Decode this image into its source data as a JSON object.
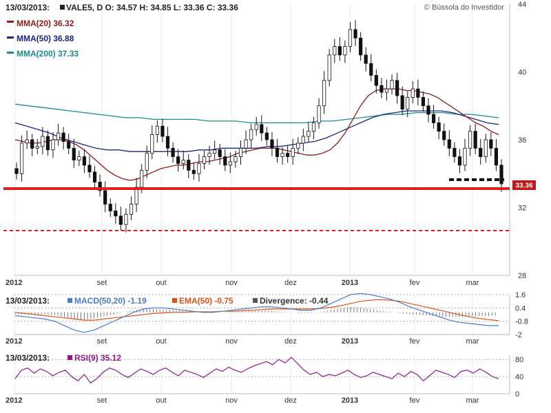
{
  "header": {
    "date": "13/03/2013:",
    "ohlc": "VALE5, D  O: 34.57  H: 34.85  L: 33.36  C: 33.36",
    "credit": "© Bússola do Investidor",
    "legend": [
      {
        "label": "MMA(20) 36.32",
        "color": "#8b1a1a"
      },
      {
        "label": "MMA(50) 36.88",
        "color": "#1a237e"
      },
      {
        "label": "MMA(200) 37.33",
        "color": "#1b8a8a"
      }
    ],
    "price_badge": "33.36"
  },
  "macd_header": {
    "date": "13/03/2013:",
    "macd": "MACD(50,20) -1.19",
    "ema": "EMA(50) -0.75",
    "divergence": "Divergence: -0.44"
  },
  "rsi_header": {
    "date": "13/03/2013:",
    "rsi": "RSI(9) 35.12"
  },
  "x_ticks": [
    {
      "label": "2012",
      "bold": true
    },
    {
      "label": "set",
      "bold": false
    },
    {
      "label": "out",
      "bold": false
    },
    {
      "label": "nov",
      "bold": false
    },
    {
      "label": "dez",
      "bold": false
    },
    {
      "label": "2013",
      "bold": true
    },
    {
      "label": "fev",
      "bold": false
    },
    {
      "label": "mar",
      "bold": false
    }
  ],
  "chart_data": [
    {
      "type": "candlestick",
      "ylim": [
        28,
        44
      ],
      "yticks": [
        "44",
        "40",
        "36",
        "32",
        "28"
      ],
      "support_line": 33.1,
      "dashed_support": 30.8,
      "closes": [
        34.0,
        35.8,
        36.0,
        35.5,
        35.6,
        36.2,
        35.4,
        36.0,
        36.4,
        35.9,
        35.5,
        34.8,
        35.0,
        34.5,
        34.1,
        33.5,
        33.0,
        32.2,
        31.8,
        31.5,
        31.0,
        31.6,
        32.2,
        33.2,
        34.2,
        35.2,
        36.3,
        36.8,
        36.2,
        35.5,
        35.0,
        34.6,
        34.8,
        34.2,
        34.0,
        34.6,
        35.0,
        35.2,
        35.4,
        35.0,
        34.5,
        34.7,
        35.0,
        35.5,
        36.0,
        36.6,
        36.9,
        36.4,
        36.0,
        35.5,
        35.0,
        35.2,
        35.0,
        35.5,
        35.8,
        36.2,
        36.5,
        37.0,
        38.0,
        39.5,
        41.0,
        41.5,
        41.0,
        41.5,
        42.5,
        42.0,
        41.0,
        40.5,
        39.8,
        39.2,
        38.8,
        39.0,
        39.5,
        38.6,
        37.8,
        38.5,
        39.0,
        38.5,
        38.0,
        37.5,
        37.0,
        36.5,
        36.0,
        35.5,
        35.0,
        34.5,
        35.5,
        36.5,
        35.5,
        35.0,
        36.0,
        35.5,
        34.5,
        33.4
      ],
      "ma20": [
        36.0,
        35.9,
        35.8,
        35.8,
        35.9,
        36.0,
        36.0,
        35.9,
        35.7,
        35.4,
        35.0,
        34.6,
        34.2,
        33.9,
        33.7,
        33.6,
        33.7,
        33.9,
        34.1,
        34.3,
        34.4,
        34.5,
        34.5,
        34.6,
        34.7,
        34.7,
        34.8,
        34.9,
        35.0,
        35.2,
        35.3,
        35.4,
        35.5,
        35.5,
        35.5,
        35.4,
        35.3,
        35.2,
        35.1,
        35.1,
        35.2,
        35.4,
        35.8,
        36.4,
        37.2,
        38.0,
        38.6,
        38.9,
        39.0,
        39.0,
        39.0,
        38.9,
        38.9,
        38.8,
        38.7,
        38.5,
        38.2,
        37.9,
        37.6,
        37.3,
        37.0,
        36.8,
        36.5,
        36.3
      ],
      "ma50": [
        37.0,
        36.8,
        36.6,
        36.4,
        36.1,
        35.9,
        35.7,
        35.5,
        35.4,
        35.4,
        35.3,
        35.3,
        35.3,
        35.3,
        35.3,
        35.3,
        35.4,
        35.4,
        35.5,
        35.5,
        35.5,
        35.5,
        35.6,
        35.6,
        35.7,
        35.8,
        35.9,
        36.1,
        36.4,
        36.7,
        37.0,
        37.3,
        37.5,
        37.6,
        37.7,
        37.7,
        37.7,
        37.7,
        37.6,
        37.4,
        37.2,
        37.0,
        36.9
      ],
      "ma200": [
        38.1,
        38.0,
        37.9,
        37.8,
        37.7,
        37.6,
        37.5,
        37.4,
        37.3,
        37.3,
        37.2,
        37.2,
        37.2,
        37.2,
        37.1,
        37.1,
        37.1,
        37.0,
        37.0,
        37.0,
        37.0,
        37.0,
        37.1,
        37.1,
        37.2,
        37.3,
        37.4,
        37.5,
        37.5,
        37.6,
        37.6,
        37.6,
        37.5,
        37.5,
        37.4,
        37.3
      ]
    },
    {
      "type": "line",
      "title": "MACD(50,20)",
      "ylim": [
        -2,
        1.6
      ],
      "yticks": [
        "1.6",
        "0.4",
        "-0.8",
        "-2"
      ],
      "series": [
        {
          "name": "MACD(50,20)",
          "color": "#4a7ac8",
          "values": [
            -0.3,
            -0.4,
            -0.5,
            -0.6,
            -0.8,
            -1.2,
            -1.6,
            -1.8,
            -1.6,
            -1.2,
            -0.8,
            -0.4,
            0.0,
            0.3,
            0.4,
            0.4,
            0.3,
            0.2,
            0.1,
            0.0,
            0.0,
            0.1,
            0.2,
            0.3,
            0.4,
            0.5,
            0.5,
            0.4,
            0.3,
            0.2,
            0.2,
            0.4,
            0.8,
            1.2,
            1.6,
            1.7,
            1.6,
            1.4,
            1.2,
            0.9,
            0.5,
            0.2,
            -0.1,
            -0.4,
            -0.7,
            -0.9,
            -1.0,
            -1.1,
            -1.2,
            -1.19
          ]
        },
        {
          "name": "EMA(50)",
          "color": "#d9541c",
          "values": [
            0.0,
            -0.1,
            -0.2,
            -0.3,
            -0.4,
            -0.5,
            -0.6,
            -0.7,
            -0.7,
            -0.6,
            -0.5,
            -0.4,
            -0.3,
            -0.2,
            -0.1,
            -0.05,
            0.0,
            0.0,
            0.05,
            0.05,
            0.05,
            0.1,
            0.1,
            0.15,
            0.2,
            0.25,
            0.3,
            0.3,
            0.3,
            0.3,
            0.3,
            0.35,
            0.45,
            0.6,
            0.8,
            1.0,
            1.1,
            1.15,
            1.1,
            1.0,
            0.8,
            0.6,
            0.4,
            0.2,
            0.0,
            -0.2,
            -0.4,
            -0.55,
            -0.65,
            -0.75
          ]
        }
      ]
    },
    {
      "type": "line",
      "title": "RSI(9)",
      "ylim": [
        0,
        90
      ],
      "yticks": [
        "80",
        "40",
        "0"
      ],
      "series": [
        {
          "name": "RSI(9)",
          "color": "#8a1a8a",
          "values": [
            35,
            55,
            60,
            48,
            58,
            52,
            42,
            50,
            55,
            40,
            30,
            45,
            25,
            35,
            50,
            60,
            55,
            45,
            38,
            48,
            58,
            52,
            45,
            55,
            60,
            50,
            42,
            55,
            50,
            45,
            38,
            48,
            58,
            52,
            62,
            55,
            50,
            58,
            65,
            70,
            75,
            68,
            80,
            72,
            85,
            70,
            55,
            45,
            50,
            40,
            45,
            42,
            48,
            55,
            45,
            38,
            42,
            50,
            45,
            40,
            35,
            48,
            40,
            52,
            45,
            30,
            42,
            55,
            50,
            45,
            38,
            52,
            55,
            48,
            58,
            50,
            40,
            35
          ]
        }
      ]
    }
  ]
}
